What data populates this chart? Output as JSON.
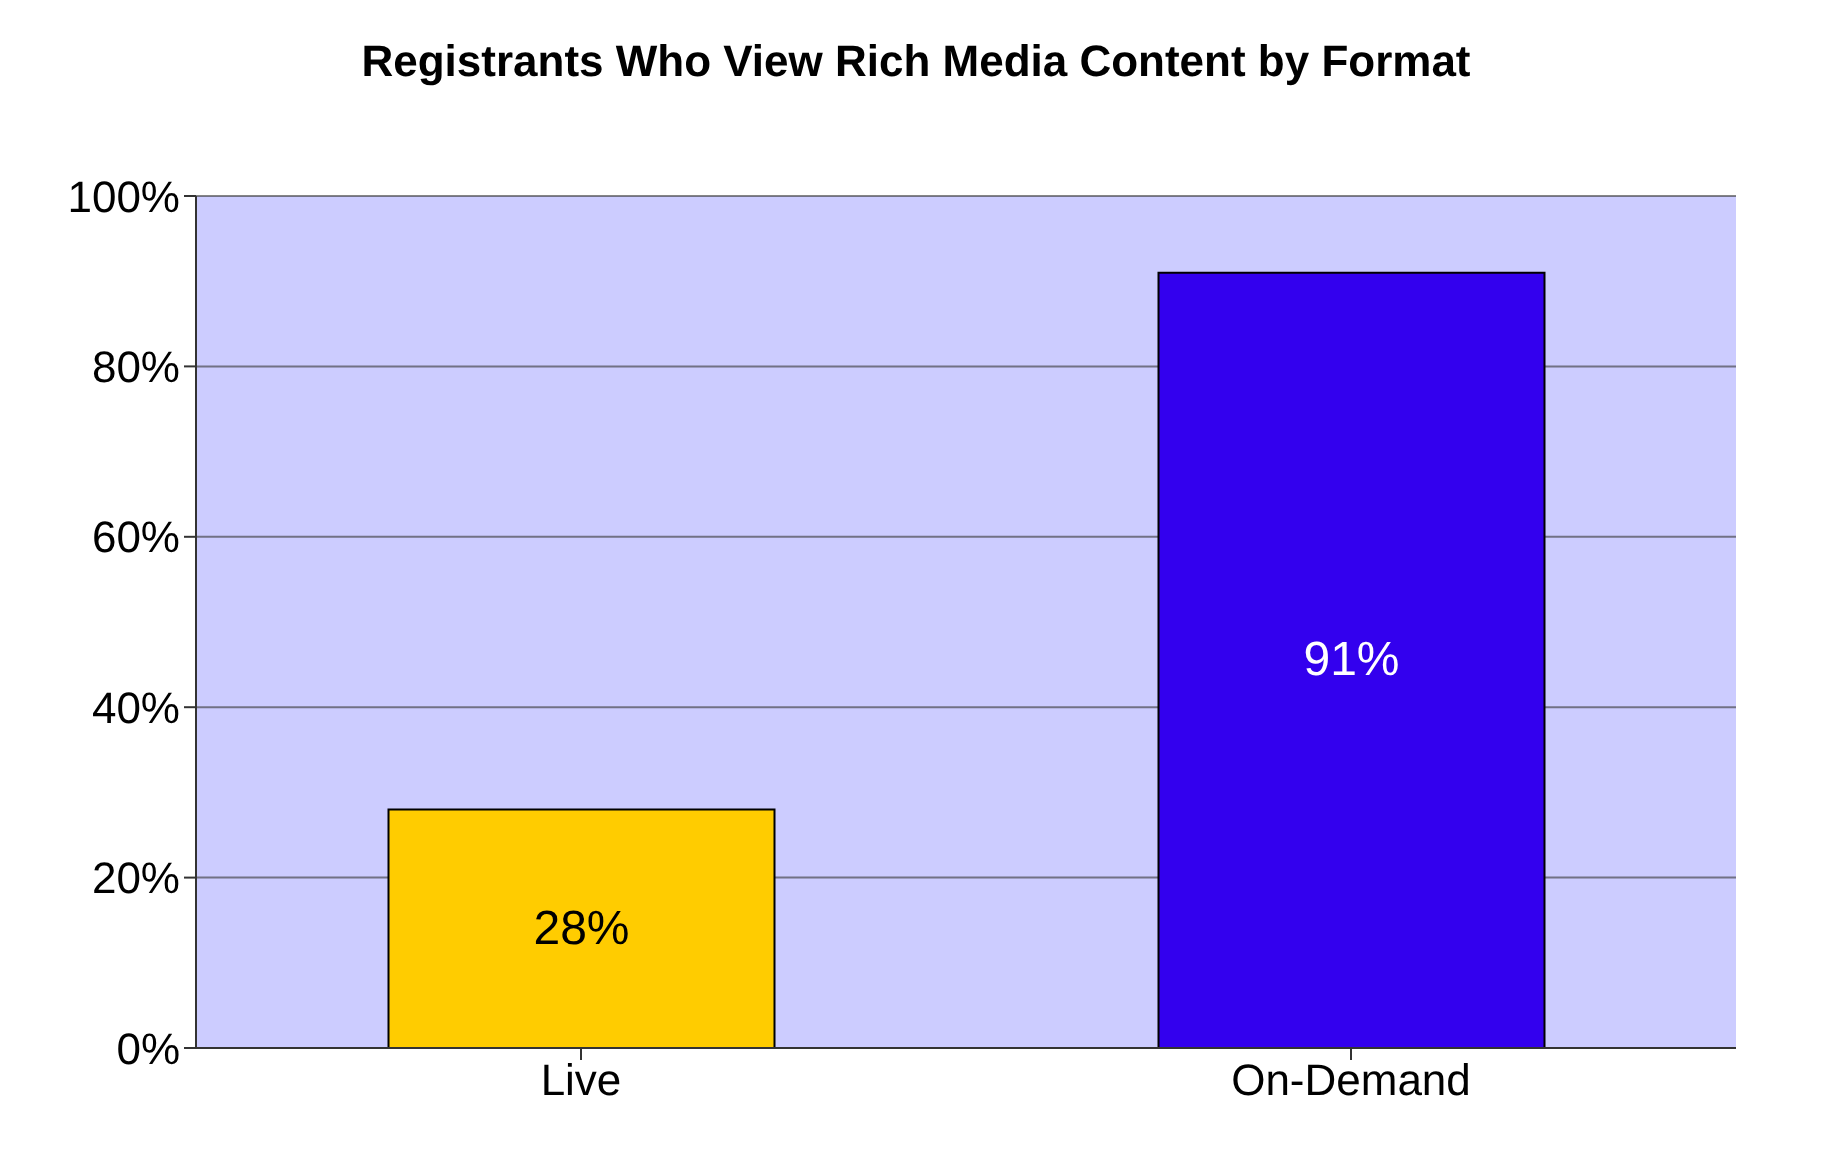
{
  "chart_data": {
    "type": "bar",
    "title": "Registrants Who View Rich Media Content by Format",
    "categories": [
      "Live",
      "On-Demand"
    ],
    "values": [
      28,
      91
    ],
    "value_labels": [
      "28%",
      "91%"
    ],
    "colors": [
      "#ffcc00",
      "#3300ee"
    ],
    "ylim": [
      0,
      100
    ],
    "yticks": [
      {
        "value": 0,
        "label": "0%"
      },
      {
        "value": 20,
        "label": "20%"
      },
      {
        "value": 40,
        "label": "40%"
      },
      {
        "value": 60,
        "label": "60%"
      },
      {
        "value": 80,
        "label": "80%"
      },
      {
        "value": 100,
        "label": "100%"
      }
    ],
    "grid": "y"
  }
}
